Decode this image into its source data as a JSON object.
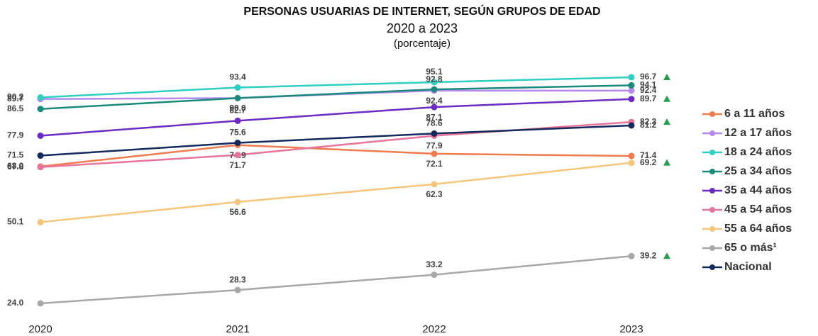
{
  "chart_data": {
    "type": "line",
    "title": "PERSONAS USUARIAS DE INTERNET, SEGÚN GRUPOS DE EDAD",
    "subtitle": "2020 a 2023",
    "unit_label": "(porcentaje)",
    "categories": [
      "2020",
      "2021",
      "2022",
      "2023"
    ],
    "ylim": [
      20,
      100
    ],
    "series": [
      {
        "name": "6 a 11 años",
        "color": "#f07b4c",
        "values": [
          68.0,
          74.9,
          72.1,
          71.4
        ],
        "value_labels": [
          "68.0",
          "74.9",
          "72.1",
          "71.4"
        ],
        "triangle": false
      },
      {
        "name": "12 a 17 años",
        "color": "#b48af0",
        "values": [
          89.7,
          90.0,
          92.4,
          92.4
        ],
        "value_labels": [
          "89.7",
          "90.0",
          "92.4",
          "92.4"
        ],
        "triangle": false
      },
      {
        "name": "18 a 24 años",
        "color": "#2ed0c4",
        "values": [
          90.2,
          93.4,
          95.1,
          96.7
        ],
        "value_labels": [
          "90.2",
          "93.4",
          "95.1",
          "96.7"
        ],
        "triangle": true
      },
      {
        "name": "25 a 34 años",
        "color": "#1a8a7c",
        "values": [
          86.5,
          90.0,
          92.8,
          94.1
        ],
        "value_labels": [
          "86.5",
          "90.0",
          "92.8",
          "94.1"
        ],
        "triangle": false
      },
      {
        "name": "35 a 44 años",
        "color": "#6a2cc4",
        "values": [
          77.9,
          82.7,
          87.1,
          89.7
        ],
        "value_labels": [
          "77.9",
          "82.7",
          "87.1",
          "89.7"
        ],
        "triangle": true
      },
      {
        "name": "45 a 54 años",
        "color": "#e8749a",
        "values": [
          67.8,
          71.7,
          77.9,
          82.3
        ],
        "value_labels": [
          "67.8",
          "71.7",
          "77.9",
          "82.3"
        ],
        "triangle": true
      },
      {
        "name": "55 a 64 años",
        "color": "#f6c67a",
        "values": [
          50.1,
          56.6,
          62.3,
          69.2
        ],
        "value_labels": [
          "50.1",
          "56.6",
          "62.3",
          "69.2"
        ],
        "triangle": true
      },
      {
        "name": "65 o más¹",
        "color": "#a8a8a8",
        "values": [
          24.0,
          28.3,
          33.2,
          39.2
        ],
        "value_labels": [
          "24.0",
          "28.3",
          "33.2",
          "39.2"
        ],
        "triangle": true
      },
      {
        "name": "Nacional",
        "color": "#152a5c",
        "values": [
          71.5,
          75.6,
          78.6,
          81.2
        ],
        "value_labels": [
          "71.5",
          "75.6",
          "78.6",
          "81.2"
        ],
        "triangle": false
      }
    ]
  }
}
